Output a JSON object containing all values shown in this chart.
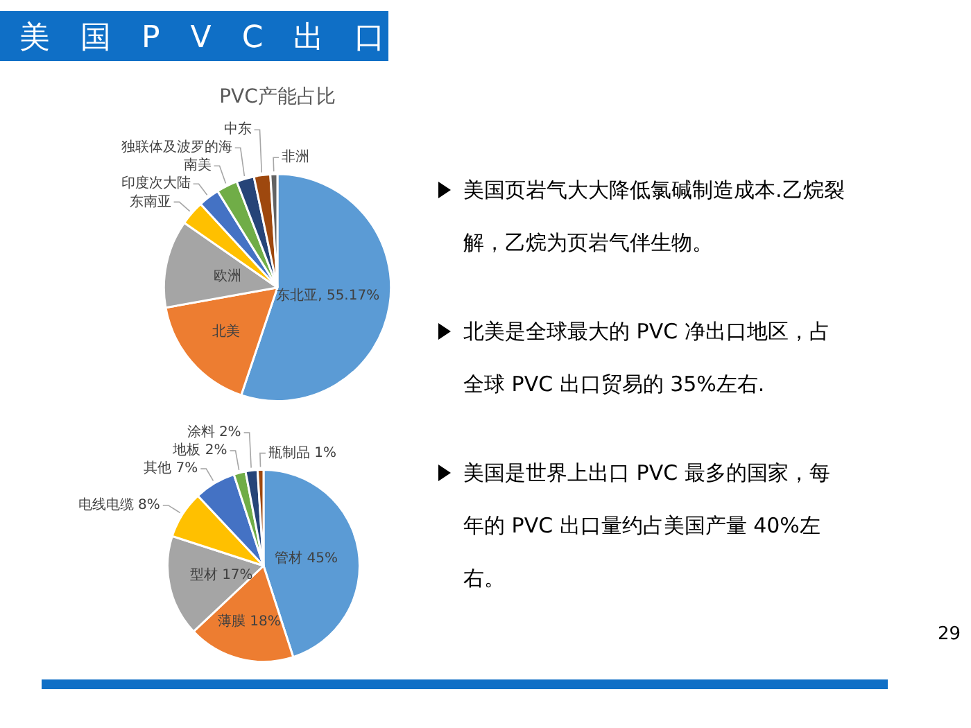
{
  "chart_data": [
    {
      "type": "pie",
      "title": "PVC产能占比",
      "categories": [
        "东北亚",
        "北美",
        "欧洲",
        "东南亚",
        "印度次大陆",
        "南美",
        "独联体及波罗的海",
        "中东",
        "非洲"
      ],
      "values": [
        55.17,
        17,
        12.5,
        3.5,
        3,
        3,
        2.5,
        2.33,
        1
      ],
      "colors": [
        "#5b9bd5",
        "#ed7d31",
        "#a5a5a5",
        "#ffc000",
        "#4472c4",
        "#70ad47",
        "#264478",
        "#9e480e",
        "#636363"
      ],
      "value_labels": [
        "55.17%",
        null,
        null,
        null,
        null,
        null,
        null,
        null,
        null
      ],
      "legend": false
    },
    {
      "type": "pie",
      "categories": [
        "管材",
        "薄膜",
        "型材",
        "电线电缆",
        "其他",
        "地板",
        "涂料",
        "瓶制品"
      ],
      "values": [
        45,
        18,
        17,
        8,
        7,
        2,
        2,
        1
      ],
      "colors": [
        "#5b9bd5",
        "#ed7d31",
        "#a5a5a5",
        "#ffc000",
        "#4472c4",
        "#70ad47",
        "#264478",
        "#9e480e"
      ],
      "value_labels": [
        "45%",
        "18%",
        "17%",
        "8%",
        "7%",
        "2%",
        "2%",
        "1%"
      ],
      "legend": false
    },
    {
      "type": "other",
      "title": "美国PVC出口",
      "annotations": [
        "美国页岩气大大降低氯碱制造成本.乙烷裂解，乙烷为页岩气伴生物。",
        "北美是全球最大的 PVC 净出口地区，占全球 PVC 出口贸易的 35%左右.",
        "美国是世界上出口 PVC 最多的国家，每年的 PVC 出口量约占美国产量 40%左右。",
        "29"
      ]
    }
  ]
}
